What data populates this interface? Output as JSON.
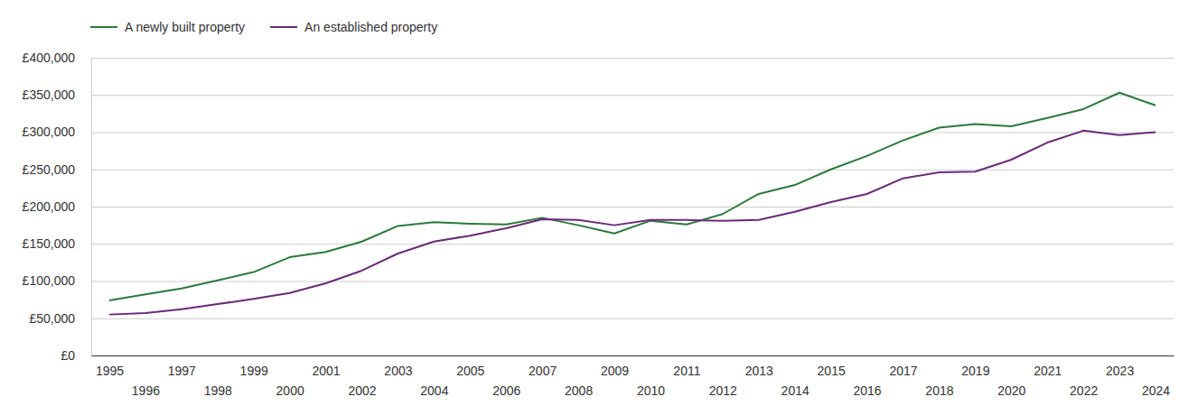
{
  "chart_data": {
    "type": "line",
    "x": [
      1995,
      1996,
      1997,
      1998,
      1999,
      2000,
      2001,
      2002,
      2003,
      2004,
      2005,
      2006,
      2007,
      2008,
      2009,
      2010,
      2011,
      2012,
      2013,
      2014,
      2015,
      2016,
      2017,
      2018,
      2019,
      2020,
      2021,
      2022,
      2023,
      2024
    ],
    "series": [
      {
        "name": "A newly built property",
        "color": "#2b7a3b",
        "values": [
          74000,
          82000,
          90000,
          101000,
          112000,
          132000,
          139000,
          153000,
          174000,
          179000,
          177000,
          176000,
          185000,
          175000,
          164000,
          181000,
          176000,
          190000,
          217000,
          229000,
          250000,
          268000,
          289000,
          306000,
          311000,
          308000,
          319000,
          331000,
          353000,
          336000
        ]
      },
      {
        "name": "An established property",
        "color": "#6b2a7a",
        "values": [
          55000,
          57000,
          62000,
          69000,
          76000,
          84000,
          97000,
          114000,
          137000,
          153000,
          161000,
          171000,
          183000,
          182000,
          175000,
          182000,
          182000,
          181000,
          182000,
          193000,
          206000,
          217000,
          238000,
          246000,
          247000,
          263000,
          286000,
          302000,
          296000,
          300000
        ]
      }
    ],
    "xlim": [
      1994.5,
      2024.5
    ],
    "xticks": [
      1995,
      1996,
      1997,
      1998,
      1999,
      2000,
      2001,
      2002,
      2003,
      2004,
      2005,
      2006,
      2007,
      2008,
      2009,
      2010,
      2011,
      2012,
      2013,
      2014,
      2015,
      2016,
      2017,
      2018,
      2019,
      2020,
      2021,
      2022,
      2023,
      2024
    ],
    "ylim": [
      0,
      400000
    ],
    "yticks": [
      {
        "value": 0,
        "label": "£0"
      },
      {
        "value": 50000,
        "label": "£50,000"
      },
      {
        "value": 100000,
        "label": "£100,000"
      },
      {
        "value": 150000,
        "label": "£150,000"
      },
      {
        "value": 200000,
        "label": "£200,000"
      },
      {
        "value": 250000,
        "label": "£250,000"
      },
      {
        "value": 300000,
        "label": "£300,000"
      },
      {
        "value": 350000,
        "label": "£350,000"
      },
      {
        "value": 400000,
        "label": "£400,000"
      }
    ],
    "grid": true,
    "legend": "top-left"
  }
}
